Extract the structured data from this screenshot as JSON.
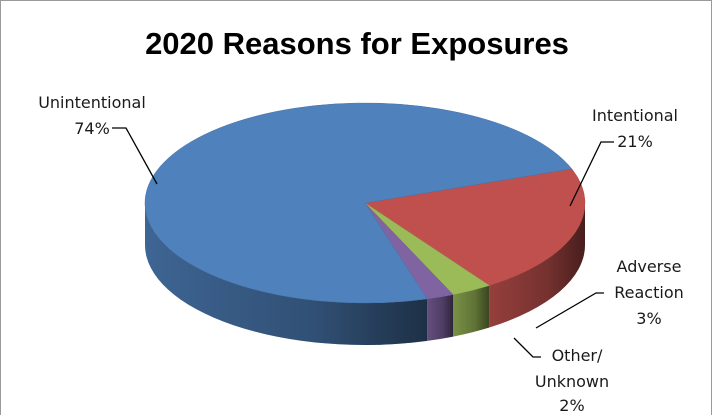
{
  "chart_data": {
    "type": "pie",
    "title": "2020 Reasons for Exposures",
    "style": "3d",
    "slices": [
      {
        "label": "Unintentional",
        "pct_label": "74%",
        "value": 74,
        "color": "#4f81bd"
      },
      {
        "label": "Intentional",
        "pct_label": "21%",
        "value": 21,
        "color": "#c0504d"
      },
      {
        "label": "Adverse Reaction",
        "pct_label": "3%",
        "value": 3,
        "color": "#9bbb59"
      },
      {
        "label": "Other/ Unknown",
        "pct_label": "2%",
        "value": 2,
        "color": "#8064a2"
      }
    ],
    "legend": "none"
  },
  "labels": {
    "unintentional": {
      "line1": "Unintentional",
      "pct": "74%"
    },
    "intentional": {
      "line1": "Intentional",
      "pct": "21%"
    },
    "adverse": {
      "line1": "Adverse",
      "line2": "Reaction",
      "pct": "3%"
    },
    "other": {
      "line1": "Other/",
      "line2": "Unknown",
      "pct": "2%"
    }
  }
}
